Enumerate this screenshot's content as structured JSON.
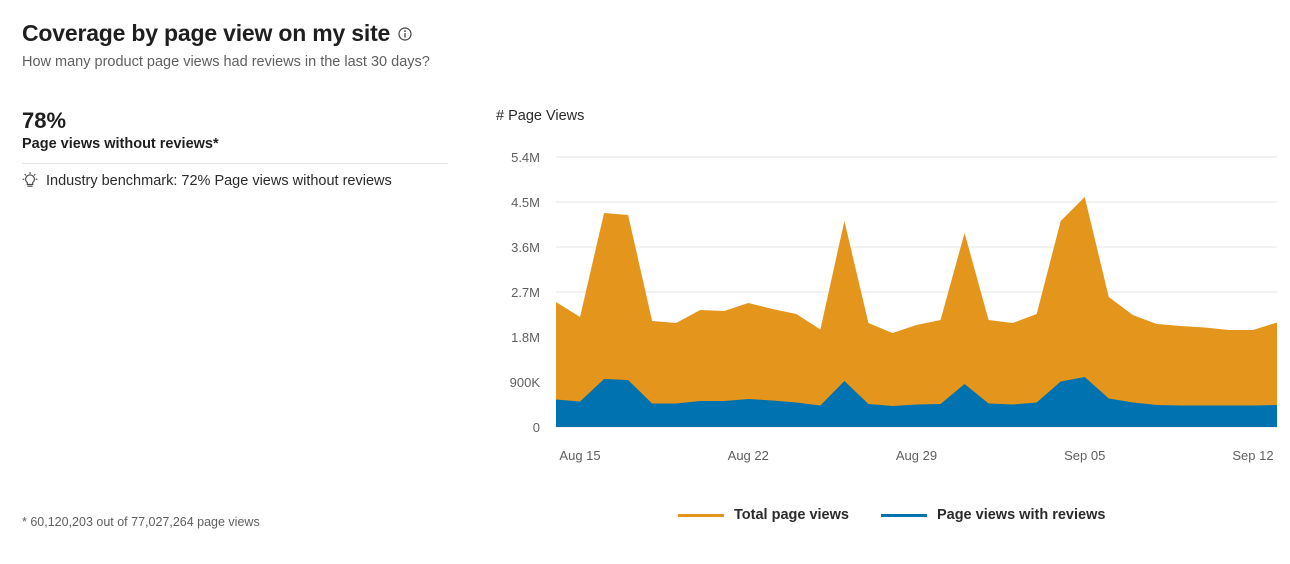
{
  "header": {
    "title": "Coverage by page view on my site",
    "subtitle": "How many product page views had reviews in the last 30 days?"
  },
  "summary": {
    "percent": "78%",
    "label": "Page views without reviews*",
    "benchmark": "Industry benchmark: 72% Page views without reviews",
    "footnote": "* 60,120,203 out of 77,027,264 page views"
  },
  "icons": {
    "info": "info-icon",
    "benchmark": "lightbulb-icon"
  },
  "colors": {
    "total": "#E3961B",
    "with_reviews": "#0072B0",
    "grid": "#e6e6e6"
  },
  "chart_data": {
    "type": "area",
    "ylabel": "# Page Views",
    "ylim": [
      0,
      5400000
    ],
    "yticks": [
      {
        "value": 0,
        "label": "0"
      },
      {
        "value": 900000,
        "label": "900K"
      },
      {
        "value": 1800000,
        "label": "1.8M"
      },
      {
        "value": 2700000,
        "label": "2.7M"
      },
      {
        "value": 3600000,
        "label": "3.6M"
      },
      {
        "value": 4500000,
        "label": "4.5M"
      },
      {
        "value": 5400000,
        "label": "5.4M"
      }
    ],
    "xticks": [
      {
        "index": 1,
        "label": "Aug 15"
      },
      {
        "index": 8,
        "label": "Aug 22"
      },
      {
        "index": 15,
        "label": "Aug 29"
      },
      {
        "index": 22,
        "label": "Sep 05"
      },
      {
        "index": 29,
        "label": "Sep 12"
      }
    ],
    "series": [
      {
        "name": "Total page views",
        "values": [
          2500000,
          2200000,
          4280000,
          4240000,
          2120000,
          2080000,
          2340000,
          2320000,
          2480000,
          2360000,
          2260000,
          1950000,
          4120000,
          2080000,
          1880000,
          2040000,
          2140000,
          3880000,
          2140000,
          2080000,
          2260000,
          4120000,
          4600000,
          2600000,
          2240000,
          2060000,
          2020000,
          1990000,
          1940000,
          1940000,
          2090000
        ]
      },
      {
        "name": "Page views with reviews",
        "values": [
          550000,
          510000,
          960000,
          940000,
          470000,
          470000,
          520000,
          520000,
          560000,
          530000,
          490000,
          430000,
          920000,
          460000,
          420000,
          450000,
          460000,
          860000,
          470000,
          450000,
          490000,
          910000,
          1000000,
          570000,
          490000,
          440000,
          430000,
          430000,
          430000,
          430000,
          440000
        ]
      }
    ],
    "legend": "bottom"
  }
}
